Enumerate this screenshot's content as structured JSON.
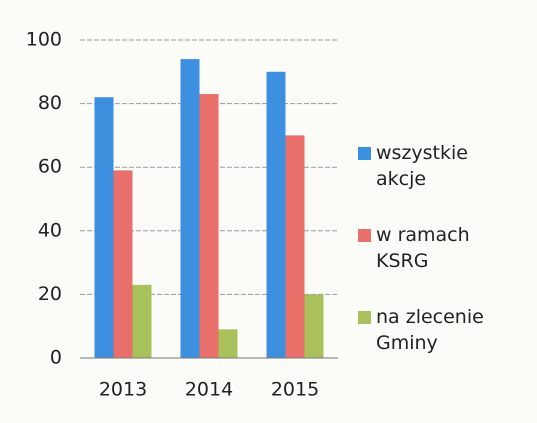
{
  "chart_data": {
    "type": "bar",
    "categories": [
      "2013",
      "2014",
      "2015"
    ],
    "series": [
      {
        "name": "wszystkie akcje",
        "color": "#3d8fdf",
        "values": [
          82,
          94,
          90
        ]
      },
      {
        "name": "w ramach KSRG",
        "color": "#e86f6a",
        "values": [
          59,
          83,
          70
        ]
      },
      {
        "name": "na zlecenie Gminy",
        "color": "#a8c15a",
        "values": [
          23,
          9,
          20
        ]
      }
    ],
    "ylim": [
      0,
      100
    ],
    "yticks": [
      0,
      20,
      40,
      60,
      80,
      100
    ],
    "grid": true,
    "legend": "right"
  }
}
